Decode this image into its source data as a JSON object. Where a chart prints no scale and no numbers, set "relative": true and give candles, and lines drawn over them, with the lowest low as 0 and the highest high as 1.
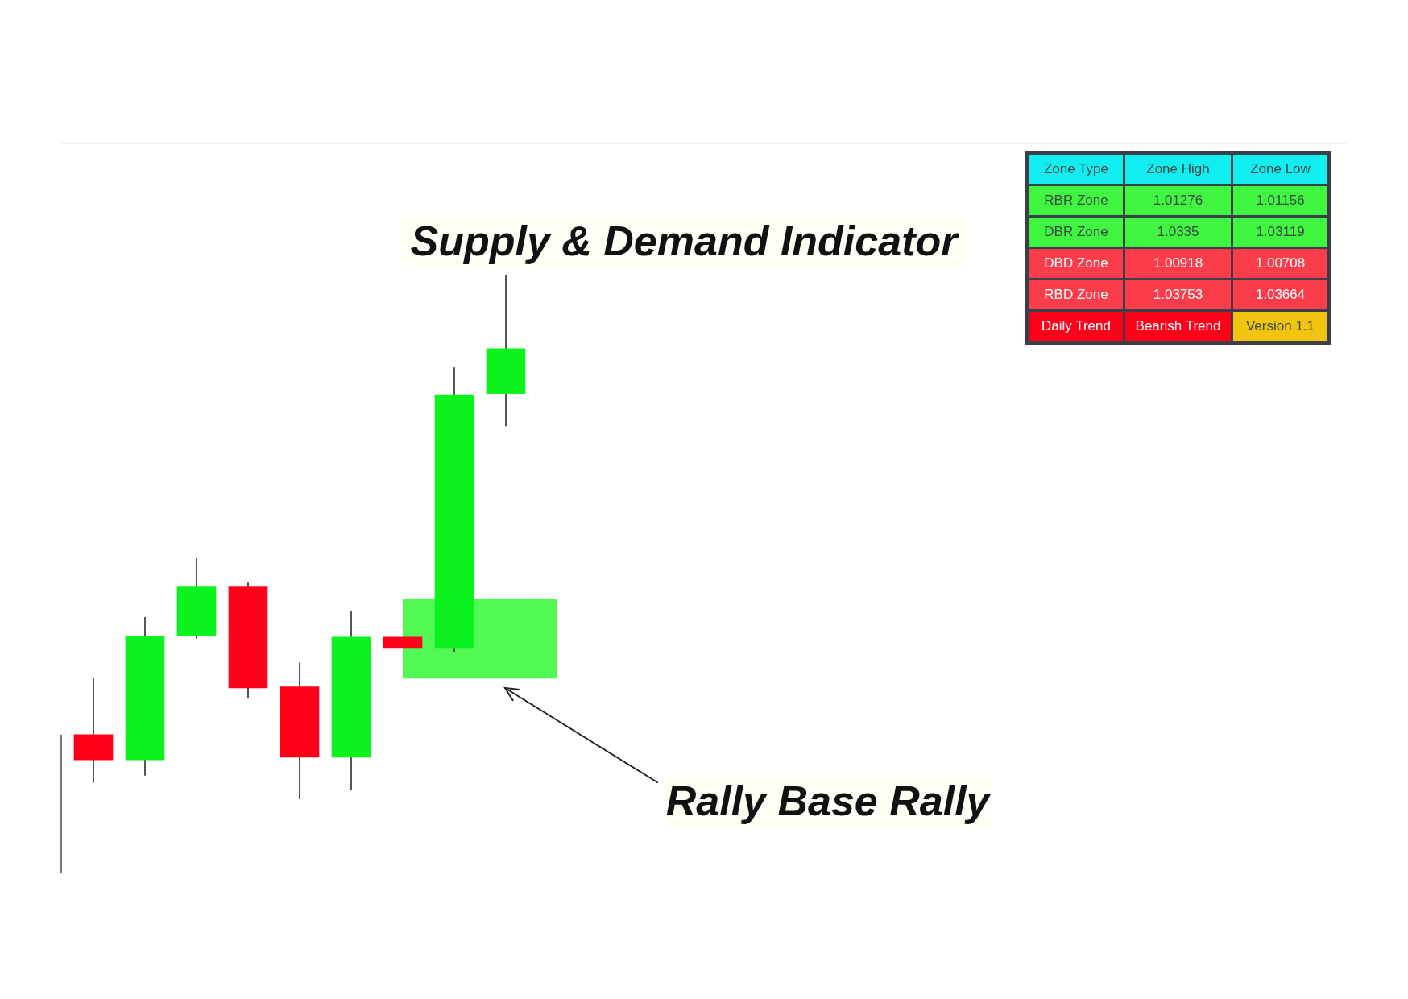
{
  "chart_data": [
    {
      "type": "candlestick",
      "title": "Supply & Demand Indicator",
      "relative": true,
      "categories": [
        null,
        null,
        null,
        null,
        null,
        null,
        null,
        null,
        null
      ],
      "ohlc": [
        [
          0.123,
          0.23,
          0.031,
          0.075
        ],
        [
          0.075,
          0.347,
          0.045,
          0.31
        ],
        [
          0.312,
          0.461,
          0.306,
          0.406
        ],
        [
          0.406,
          0.413,
          0.192,
          0.212
        ],
        [
          0.214,
          0.26,
          0.0,
          0.08
        ],
        [
          0.08,
          0.358,
          0.017,
          0.309
        ],
        [
          0.309,
          0.309,
          0.289,
          0.289
        ],
        [
          0.289,
          0.823,
          0.281,
          0.771
        ],
        [
          0.773,
          1.0,
          0.711,
          0.859
        ]
      ],
      "colors": [
        "#ff0019",
        "#0cf21e",
        "#0cf21e",
        "#ff0019",
        "#ff0019",
        "#0cf21e",
        "#ff0019",
        "#0cf21e",
        "#0cf21e"
      ],
      "bands": [
        {
          "axis": "y",
          "from": 0.23,
          "to": 0.381,
          "color": "#52f955"
        }
      ],
      "annotations": [
        "Rally Base Rally"
      ]
    },
    {
      "type": "other",
      "categories": [
        "Zone Type",
        "Zone High",
        "Zone Low"
      ],
      "color": "#12eef0",
      "y_categories": [
        "RBR Zone",
        "DBR Zone",
        "DBD Zone",
        "RBD Zone",
        "Daily Trend"
      ],
      "cell_labels": [
        [
          "1.01276",
          "1.01156"
        ],
        [
          "1.0335",
          "1.03119"
        ],
        [
          "1.00918",
          "1.00708"
        ],
        [
          "1.03753",
          "1.03664"
        ],
        [
          "Bearish Trend",
          "Version 1.1"
        ]
      ],
      "colors": [
        [
          "#3ff53f",
          "#3ff53f",
          "#3ff53f"
        ],
        [
          "#3ff53f",
          "#3ff53f",
          "#3ff53f"
        ],
        [
          "#fb3c4b",
          "#fb3c4b",
          "#fb3c4b"
        ],
        [
          "#fb3c4b",
          "#fb3c4b",
          "#fb3c4b"
        ],
        [
          "#ff0018",
          "#ff0018",
          "#f1c40f"
        ]
      ]
    }
  ]
}
